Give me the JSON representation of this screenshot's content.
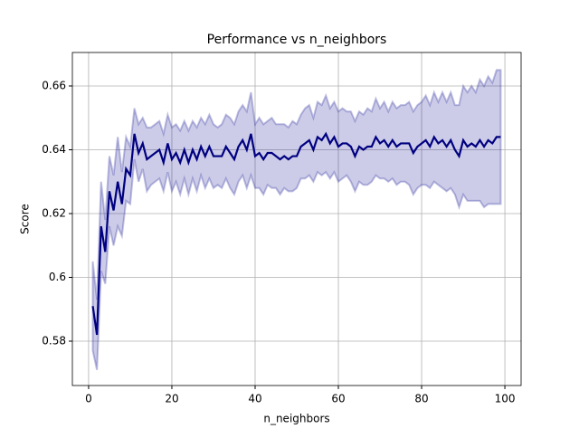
{
  "chart_data": {
    "type": "line",
    "title": "Performance vs n_neighbors",
    "x_label": "n_neighbors",
    "y_label": "Score",
    "x": [
      1,
      2,
      3,
      4,
      5,
      6,
      7,
      8,
      9,
      10,
      11,
      12,
      13,
      14,
      15,
      16,
      17,
      18,
      19,
      20,
      21,
      22,
      23,
      24,
      25,
      26,
      27,
      28,
      29,
      30,
      31,
      32,
      33,
      34,
      35,
      36,
      37,
      38,
      39,
      40,
      41,
      42,
      43,
      44,
      45,
      46,
      47,
      48,
      49,
      50,
      51,
      52,
      53,
      54,
      55,
      56,
      57,
      58,
      59,
      60,
      61,
      62,
      63,
      64,
      65,
      66,
      67,
      68,
      69,
      70,
      71,
      72,
      73,
      74,
      75,
      76,
      77,
      78,
      79,
      80,
      81,
      82,
      83,
      84,
      85,
      86,
      87,
      88,
      89,
      90,
      91,
      92,
      93,
      94,
      95,
      96,
      97,
      98,
      99
    ],
    "series": [
      {
        "color": "#000080",
        "values": [
          0.591,
          0.582,
          0.616,
          0.608,
          0.627,
          0.621,
          0.63,
          0.623,
          0.634,
          0.632,
          0.645,
          0.639,
          0.642,
          0.637,
          0.638,
          0.639,
          0.64,
          0.636,
          0.642,
          0.637,
          0.639,
          0.636,
          0.64,
          0.636,
          0.64,
          0.637,
          0.641,
          0.638,
          0.641,
          0.638,
          0.638,
          0.638,
          0.641,
          0.639,
          0.637,
          0.641,
          0.643,
          0.64,
          0.645,
          0.638,
          0.639,
          0.637,
          0.639,
          0.639,
          0.638,
          0.637,
          0.638,
          0.637,
          0.638,
          0.638,
          0.641,
          0.642,
          0.643,
          0.64,
          0.644,
          0.643,
          0.645,
          0.642,
          0.644,
          0.641,
          0.642,
          0.642,
          0.641,
          0.638,
          0.641,
          0.64,
          0.641,
          0.641,
          0.644,
          0.642,
          0.643,
          0.641,
          0.643,
          0.641,
          0.642,
          0.642,
          0.642,
          0.639,
          0.641,
          0.642,
          0.643,
          0.641,
          0.644,
          0.642,
          0.643,
          0.641,
          0.643,
          0.64,
          0.638,
          0.643,
          0.641,
          0.642,
          0.641,
          0.643,
          0.641,
          0.643,
          0.642,
          0.644,
          0.644
        ],
        "errors": [
          0.014,
          0.011,
          0.014,
          0.01,
          0.011,
          0.011,
          0.014,
          0.01,
          0.01,
          0.009,
          0.008,
          0.009,
          0.008,
          0.01,
          0.009,
          0.009,
          0.009,
          0.009,
          0.009,
          0.01,
          0.009,
          0.01,
          0.009,
          0.01,
          0.009,
          0.01,
          0.009,
          0.01,
          0.01,
          0.01,
          0.009,
          0.01,
          0.01,
          0.011,
          0.011,
          0.011,
          0.011,
          0.012,
          0.013,
          0.01,
          0.011,
          0.011,
          0.01,
          0.011,
          0.01,
          0.011,
          0.01,
          0.01,
          0.011,
          0.01,
          0.01,
          0.011,
          0.011,
          0.01,
          0.011,
          0.011,
          0.012,
          0.011,
          0.011,
          0.011,
          0.011,
          0.01,
          0.011,
          0.011,
          0.011,
          0.011,
          0.012,
          0.011,
          0.012,
          0.011,
          0.012,
          0.011,
          0.012,
          0.012,
          0.012,
          0.012,
          0.013,
          0.013,
          0.013,
          0.013,
          0.014,
          0.013,
          0.014,
          0.013,
          0.015,
          0.014,
          0.015,
          0.014,
          0.016,
          0.017,
          0.017,
          0.018,
          0.017,
          0.019,
          0.019,
          0.02,
          0.019,
          0.021,
          0.021
        ]
      }
    ],
    "band_color": "#00008b",
    "xlim": [
      -3.9,
      103.9
    ],
    "ylim": [
      0.5661,
      0.6705
    ],
    "xticks": [
      0,
      20,
      40,
      60,
      80,
      100
    ],
    "yticks": [
      0.58,
      0.6,
      0.62,
      0.64,
      0.66
    ],
    "grid": true
  }
}
